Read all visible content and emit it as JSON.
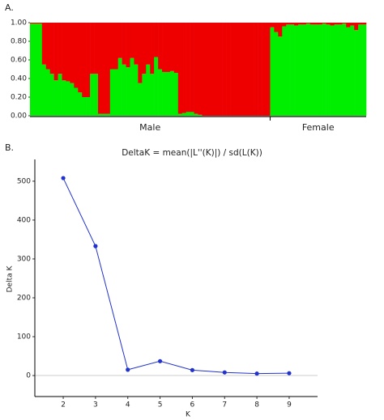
{
  "chart_data": [
    {
      "type": "stacked-bar",
      "panel": "A.",
      "series": [
        {
          "color": "#00ee00",
          "values": [
            0.99,
            0.99,
            0.99,
            0.55,
            0.5,
            0.45,
            0.38,
            0.45,
            0.38,
            0.37,
            0.35,
            0.3,
            0.25,
            0.2,
            0.2,
            0.45,
            0.45,
            0.02,
            0.02,
            0.02,
            0.5,
            0.5,
            0.62,
            0.55,
            0.52,
            0.62,
            0.55,
            0.35,
            0.45,
            0.55,
            0.45,
            0.63,
            0.5,
            0.47,
            0.47,
            0.48,
            0.46,
            0.02,
            0.03,
            0.04,
            0.04,
            0.02,
            0.01,
            0,
            0,
            0,
            0,
            0,
            0,
            0,
            0,
            0,
            0,
            0,
            0,
            0,
            0,
            0,
            0,
            0,
            0.95,
            0.9,
            0.85,
            0.96,
            0.98,
            0.98,
            0.97,
            0.98,
            0.98,
            0.99,
            0.98,
            0.98,
            0.98,
            0.99,
            0.98,
            0.97,
            0.98,
            0.98,
            0.99,
            0.95,
            0.97,
            0.92,
            0.98,
            0.98
          ]
        },
        {
          "color": "#ee0000",
          "values": [
            0.01,
            0.01,
            0.01,
            0.45,
            0.5,
            0.55,
            0.62,
            0.55,
            0.62,
            0.63,
            0.65,
            0.7,
            0.75,
            0.8,
            0.8,
            0.55,
            0.55,
            0.98,
            0.98,
            0.98,
            0.5,
            0.5,
            0.38,
            0.45,
            0.48,
            0.38,
            0.45,
            0.65,
            0.55,
            0.45,
            0.55,
            0.37,
            0.5,
            0.53,
            0.53,
            0.52,
            0.54,
            0.98,
            0.97,
            0.96,
            0.96,
            0.98,
            0.99,
            1,
            1,
            1,
            1,
            1,
            1,
            1,
            1,
            1,
            1,
            1,
            1,
            1,
            1,
            1,
            1,
            1,
            0.05,
            0.1,
            0.15,
            0.04,
            0.02,
            0.02,
            0.03,
            0.02,
            0.02,
            0.01,
            0.02,
            0.02,
            0.02,
            0.01,
            0.02,
            0.03,
            0.02,
            0.02,
            0.01,
            0.05,
            0.03,
            0.08,
            0.02,
            0.02
          ]
        }
      ],
      "groups": [
        {
          "label": "Male",
          "count": 60
        },
        {
          "label": "Female",
          "count": 24
        }
      ],
      "ylim": [
        0,
        1
      ],
      "yticks": [
        {
          "value": 0,
          "label": "0.00"
        },
        {
          "value": 0.2,
          "label": "0.20"
        },
        {
          "value": 0.4,
          "label": "0.40"
        },
        {
          "value": 0.6,
          "label": "0.60"
        },
        {
          "value": 0.8,
          "label": "0.80"
        },
        {
          "value": 1,
          "label": "1.00"
        }
      ]
    },
    {
      "type": "line",
      "panel": "B.",
      "title": "DeltaK = mean(|L''(K)|) / sd(L(K))",
      "x_label": "K",
      "y_label": "Delta K",
      "x": [
        2,
        3,
        4,
        5,
        6,
        7,
        8,
        9
      ],
      "values": [
        508,
        333,
        15,
        37,
        14,
        8,
        5,
        6
      ],
      "color": "#2233cc",
      "xlim": [
        1.12,
        9.88
      ],
      "xticks": [
        2,
        3,
        4,
        5,
        6,
        7,
        8,
        9
      ],
      "ylim": [
        -54,
        556
      ],
      "yticks": [
        0,
        100,
        200,
        300,
        400,
        500
      ]
    }
  ]
}
